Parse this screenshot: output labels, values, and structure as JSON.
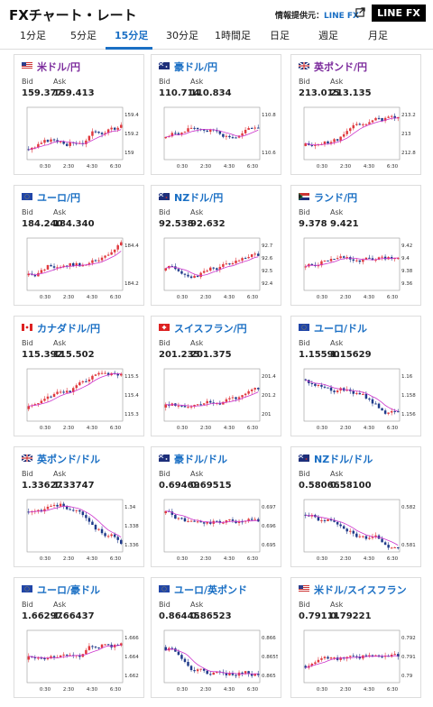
{
  "header": {
    "title": "FXチャート・レート",
    "provider_label": "情報提供元：",
    "provider_name": "LINE FX",
    "logo": "LINE FX",
    "ext_icon": "external-link-icon"
  },
  "tabs": [
    "1分足",
    "5分足",
    "15分足",
    "30分足",
    "1時間足",
    "日足",
    "週足",
    "月足"
  ],
  "active_tab": 2,
  "labels": {
    "bid": "Bid",
    "ask": "Ask"
  },
  "colors": {
    "accent": "#1a6fc4",
    "up": "#e0393e",
    "down": "#1f3a8a",
    "ma": "#cc33cc"
  },
  "x_ticks": [
    "0:30",
    "2:30",
    "4:30",
    "6:30"
  ],
  "pairs": [
    {
      "name": "米ドル/円",
      "flag": "us",
      "bid": "159.377",
      "ask": "159.413",
      "yticks": [
        "159.4",
        "159.2",
        "159"
      ],
      "trend": 1,
      "seed": 3
    },
    {
      "name": "豪ドル/円",
      "flag": "au",
      "bid": "110.714",
      "ask": "110.834",
      "yticks": [
        "110.8",
        "110.6"
      ],
      "trend": 0.3,
      "seed": 7
    },
    {
      "name": "英ポンド/円",
      "flag": "gb",
      "bid": "213.015",
      "ask": "213.135",
      "yticks": [
        "213.2",
        "213",
        "212.8"
      ],
      "trend": 0.8,
      "seed": 11
    },
    {
      "name": "ユーロ/円",
      "flag": "eu",
      "bid": "184.240",
      "ask": "184.340",
      "yticks": [
        "184.4",
        "184.2"
      ],
      "trend": 0.7,
      "seed": 13
    },
    {
      "name": "NZドル/円",
      "flag": "nz",
      "bid": "92.538",
      "ask": "92.632",
      "yticks": [
        "92.7",
        "92.6",
        "92.5",
        "92.4"
      ],
      "trend": 0.4,
      "seed": 17
    },
    {
      "name": "ランド/円",
      "flag": "za",
      "bid": "9.378",
      "ask": "9.421",
      "yticks": [
        "9.42",
        "9.4",
        "9.38",
        "9.36"
      ],
      "trend": 0.2,
      "seed": 19
    },
    {
      "name": "カナダドル/円",
      "flag": "ca",
      "bid": "115.392",
      "ask": "115.502",
      "yticks": [
        "115.5",
        "115.4",
        "115.3"
      ],
      "trend": 0.9,
      "seed": 23
    },
    {
      "name": "スイスフラン/円",
      "flag": "ch",
      "bid": "201.235",
      "ask": "201.375",
      "yticks": [
        "201.4",
        "201.2",
        "201"
      ],
      "trend": 0.8,
      "seed": 29
    },
    {
      "name": "ユーロ/ドル",
      "flag": "eu",
      "bid": "1.15590",
      "ask": "1.15629",
      "yticks": [
        "1.16",
        "1.158",
        "1.156"
      ],
      "trend": -1,
      "seed": 31
    },
    {
      "name": "英ポンド/ドル",
      "flag": "gb",
      "bid": "1.33627",
      "ask": "1.33747",
      "yticks": [
        "1.34",
        "1.338",
        "1.336"
      ],
      "trend": -0.9,
      "seed": 37
    },
    {
      "name": "豪ドル/ドル",
      "flag": "au",
      "bid": "0.69469",
      "ask": "0.69515",
      "yticks": [
        "0.697",
        "0.696",
        "0.695"
      ],
      "trend": -0.8,
      "seed": 41
    },
    {
      "name": "NZドル/ドル",
      "flag": "nz",
      "bid": "0.58066",
      "ask": "0.58100",
      "yticks": [
        "0.582",
        "0.581"
      ],
      "trend": -0.7,
      "seed": 43
    },
    {
      "name": "ユーロ/豪ドル",
      "flag": "eu",
      "bid": "1.66297",
      "ask": "1.66437",
      "yticks": [
        "1.666",
        "1.664",
        "1.662"
      ],
      "trend": 0.2,
      "seed": 47
    },
    {
      "name": "ユーロ/英ポンド",
      "flag": "eu",
      "bid": "0.86445",
      "ask": "0.86523",
      "yticks": [
        "0.866",
        "0.8655",
        "0.865"
      ],
      "trend": -0.6,
      "seed": 53
    },
    {
      "name": "米ドル/スイスフラン",
      "flag": "us",
      "bid": "0.79111",
      "ask": "0.79221",
      "yticks": [
        "0.792",
        "0.791",
        "0.79"
      ],
      "trend": 0.6,
      "seed": 59
    }
  ]
}
